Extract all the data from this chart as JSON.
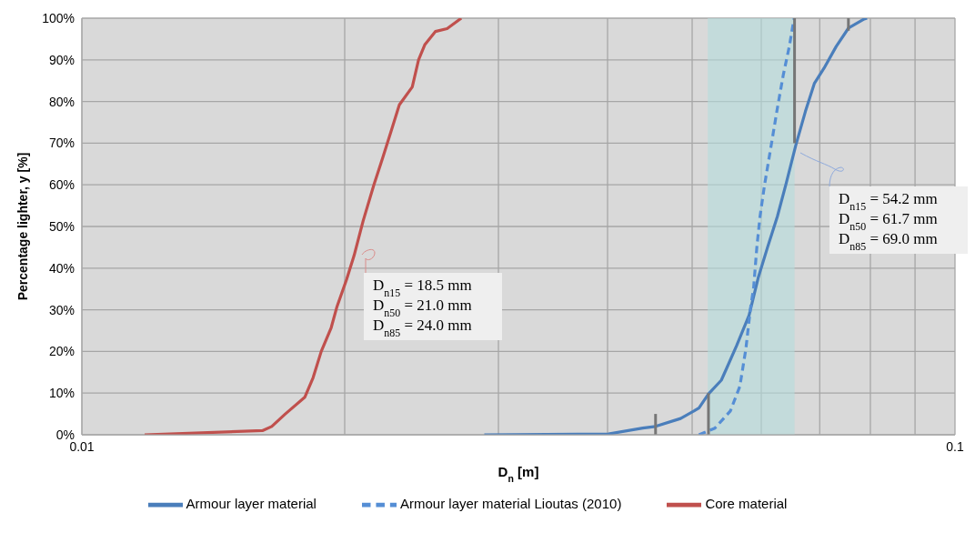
{
  "chart_data": {
    "type": "line",
    "xlabel": "D$_{n}$ [m]",
    "ylabel": "Percentage lighter, y [%]",
    "log": "x",
    "grid": true,
    "legend": "bottom",
    "xlim": [
      0.01,
      0.1
    ],
    "xticks": [
      0.01,
      {
        "value": 0.02,
        "label": null
      },
      {
        "value": 0.03,
        "label": null
      },
      {
        "value": 0.04,
        "label": null
      },
      {
        "value": 0.05,
        "label": null
      },
      {
        "value": 0.06,
        "label": null
      },
      {
        "value": 0.07,
        "label": null
      },
      {
        "value": 0.08,
        "label": null
      },
      {
        "value": 0.09,
        "label": null
      },
      0.1
    ],
    "ylim": [
      0,
      100
    ],
    "yticks": [
      {
        "value": 0,
        "label": "0%"
      },
      {
        "value": 10,
        "label": "10%"
      },
      {
        "value": 20,
        "label": "20%"
      },
      {
        "value": 30,
        "label": "30%"
      },
      {
        "value": 40,
        "label": "40%"
      },
      {
        "value": 50,
        "label": "50%"
      },
      {
        "value": 60,
        "label": "60%"
      },
      {
        "value": 70,
        "label": "70%"
      },
      {
        "value": 80,
        "label": "80%"
      },
      {
        "value": 90,
        "label": "90%"
      },
      {
        "value": 100,
        "label": "100%"
      }
    ],
    "bands": [
      {
        "axis": "x",
        "from": 0.0521,
        "to": 0.0655,
        "color": "#b4dcdc"
      }
    ],
    "series": [
      {
        "name": "Armour layer material",
        "color": "#4a7ebb",
        "x": [
          0.0289,
          0.0401,
          0.0439,
          0.0454,
          0.0485,
          0.0509,
          0.0522,
          0.054,
          0.0548,
          0.0562,
          0.0581,
          0.0595,
          0.061,
          0.0626,
          0.0641,
          0.0657,
          0.0674,
          0.069,
          0.0708,
          0.0731,
          0.0755,
          0.0787,
          0.0793
        ],
        "values": [
          0,
          0.2,
          1.6,
          2,
          3.9,
          6.4,
          9.8,
          13.1,
          16.1,
          21.3,
          28.7,
          37.6,
          45,
          52.4,
          60.5,
          69.4,
          77.6,
          84.3,
          88,
          93.2,
          97.6,
          99.8,
          100
        ]
      },
      {
        "name": "Core material",
        "color": "#c0504d",
        "x": [
          0.0118,
          0.0161,
          0.0165,
          0.0171,
          0.018,
          0.0184,
          0.0188,
          0.0193,
          0.0196,
          0.0201,
          0.0205,
          0.021,
          0.0216,
          0.0221,
          0.0226,
          0.0231,
          0.0239,
          0.0243,
          0.0247,
          0.0254,
          0.0262,
          0.0272
        ],
        "values": [
          0,
          1,
          2,
          5,
          9,
          13.7,
          20,
          25.7,
          30.8,
          37.3,
          43,
          51.4,
          60,
          66.4,
          72.8,
          79.2,
          83.5,
          90,
          93.6,
          96.8,
          97.5,
          100
        ]
      },
      {
        "name": "Armour layer material Lioutas (2010)",
        "color": "#558ed5",
        "line_style": "dashed",
        "x": [
          0.0509,
          0.0531,
          0.0553,
          0.0567,
          0.0576,
          0.0583,
          0.0588,
          0.0593,
          0.0598,
          0.0605,
          0.0615,
          0.0626,
          0.0636,
          0.0646,
          0.0654,
          0.0655
        ],
        "values": [
          0,
          1.6,
          5.7,
          11.6,
          20.5,
          30.2,
          35.3,
          45,
          52.4,
          59.8,
          68.7,
          78.4,
          86.5,
          93.2,
          99.8,
          100
        ]
      },
      {
        "color": "#767676",
        "x": [
          0.0454,
          0.0454
        ],
        "values": [
          0,
          5
        ]
      },
      {
        "color": "#767676",
        "x": [
          0.0522,
          0.0522
        ],
        "values": [
          0,
          10
        ]
      },
      {
        "color": "#767676",
        "x": [
          0.0655,
          0.0655
        ],
        "values": [
          70,
          100
        ]
      },
      {
        "color": "#767676",
        "x": [
          0.0755,
          0.0755
        ],
        "values": [
          97,
          100
        ]
      }
    ],
    "annotations": [
      "D$_{n15}$ = 18.5 mm",
      "D$_{n50}$ = 21.0 mm",
      "D$_{n85}$ = 24.0 mm",
      "D$_{n15}$ = 54.2 mm",
      "D$_{n50}$ = 61.7 mm",
      "D$_{n85}$ = 69.0 mm"
    ]
  }
}
